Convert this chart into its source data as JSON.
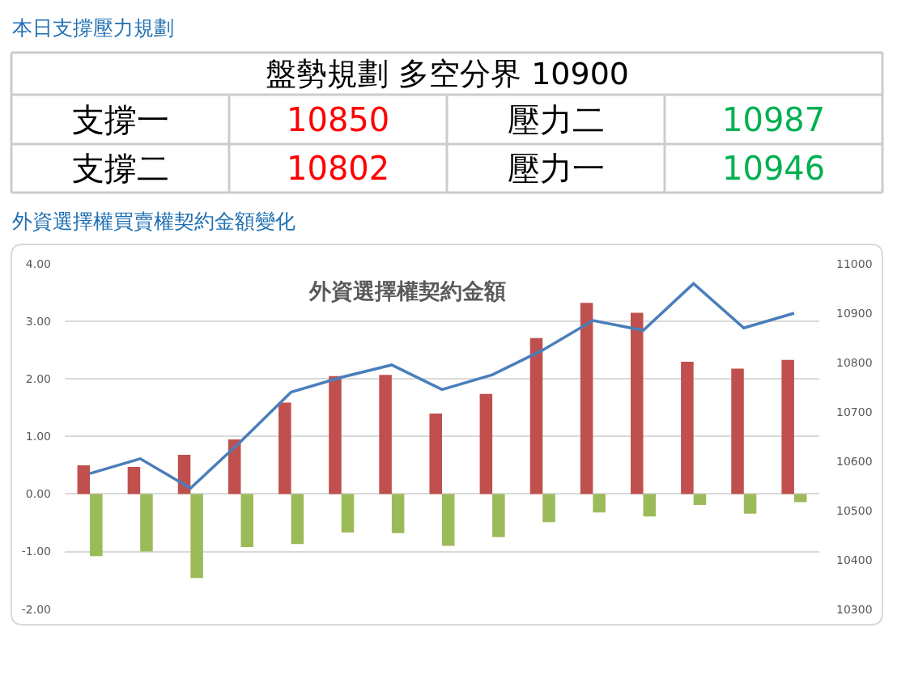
{
  "chart_data": [
    {
      "type": "other",
      "title": "本日支撐壓力規劃",
      "annotations": [
        "盤勢規劃 多空分界 10900",
        "支撐一",
        "10850",
        "壓力二",
        "10987",
        "支撐二",
        "10802",
        "壓力一",
        "10946"
      ],
      "colors": [
        "#000000",
        "#000000",
        "#ff0000",
        "#000000",
        "#00b050",
        "#000000",
        "#ff0000",
        "#000000",
        "#00b050"
      ]
    },
    {
      "type": "bar",
      "title": "外資選擇權買賣權契約金額變化",
      "subtitle": "外資選擇權契約金額",
      "categories": [
        null,
        null,
        null,
        null,
        null,
        null,
        null,
        null,
        null,
        null,
        null,
        null,
        null,
        null,
        null
      ],
      "series": [
        {
          "color": "#c0504d",
          "values": [
            0.5,
            0.47,
            0.68,
            0.95,
            1.59,
            2.05,
            2.07,
            1.4,
            1.74,
            2.71,
            3.32,
            3.15,
            2.3,
            2.18,
            2.33
          ]
        },
        {
          "color": "#9bbb59",
          "values": [
            -1.08,
            -1.0,
            -1.46,
            -0.92,
            -0.87,
            -0.67,
            -0.68,
            -0.9,
            -0.75,
            -0.49,
            -0.32,
            -0.39,
            -0.19,
            -0.34,
            -0.14
          ]
        },
        {
          "type": "line",
          "axis": "y2",
          "color": "#4a7ebb",
          "values": [
            10575,
            10605,
            10545,
            10640,
            10740,
            10770,
            10795,
            10745,
            10775,
            10825,
            10885,
            10865,
            10960,
            10870,
            10900
          ]
        }
      ],
      "ylim": [
        -2,
        4
      ],
      "yticks": [
        {
          "value": -2,
          "label": "-2.00"
        },
        {
          "value": -1,
          "label": "-1.00"
        },
        {
          "value": 0,
          "label": "0.00"
        },
        {
          "value": 1,
          "label": "1.00"
        },
        {
          "value": 2,
          "label": "2.00"
        },
        {
          "value": 3,
          "label": "3.00"
        },
        {
          "value": 4,
          "label": "4.00"
        }
      ],
      "y2lim": [
        10300,
        11000
      ],
      "y2ticks": [
        10300,
        10400,
        10500,
        10600,
        10700,
        10800,
        10900,
        11000
      ],
      "grid": "y"
    }
  ]
}
